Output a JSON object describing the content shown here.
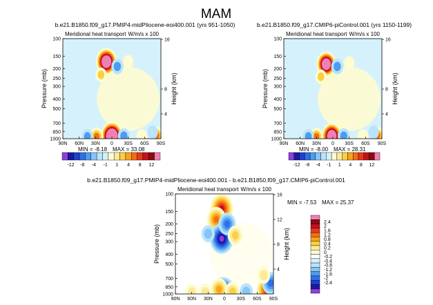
{
  "page": {
    "title": "MAM"
  },
  "colors": {
    "scale": [
      "#8e3ee0",
      "#1a1aa0",
      "#1f3fd0",
      "#2f6fe8",
      "#4e9bf0",
      "#87c5f6",
      "#b9e4fb",
      "#d5f1fb",
      "#fefcd0",
      "#fce99a",
      "#fbd040",
      "#f9a21c",
      "#f56d14",
      "#e8381a",
      "#c3121c",
      "#8e0a0e",
      "#f07fb4"
    ],
    "diff_scale": [
      "#8e3ee0",
      "#1a1aa0",
      "#1f3fd0",
      "#2f6fe8",
      "#4e9bf0",
      "#87c5f6",
      "#b9e4fb",
      "#d5f1fb",
      "#ffffff",
      "#fefcd0",
      "#fce99a",
      "#fbd040",
      "#f9a21c",
      "#f56d14",
      "#e8381a",
      "#c3121c",
      "#8e0a0e",
      "#f07fb4"
    ]
  },
  "chart_data": [
    {
      "type": "heatmap",
      "id": "panel1",
      "title": "b.e21.B1850.f09_g17.PMIP4-midPliocene-eoi400.001  (yrs 951-1050)",
      "subtitle": "Meridional heat transport",
      "units": "W/m/s x 100",
      "xlabel": "",
      "ylabel": "Pressure (mb)",
      "y2label": "Height (km)",
      "x_ticks": [
        "90N",
        "60N",
        "30N",
        "0",
        "30S",
        "60S",
        "90S"
      ],
      "x_values": [
        90,
        60,
        30,
        0,
        -30,
        -60,
        -90
      ],
      "y_ticks": [
        "100",
        "150",
        "200",
        "250",
        "300",
        "400",
        "500",
        "700",
        "850",
        "1000"
      ],
      "y_values": [
        100,
        150,
        200,
        250,
        300,
        400,
        500,
        700,
        850,
        1000
      ],
      "y2_ticks": [
        "16",
        "8",
        "4"
      ],
      "y2_values": [
        16,
        8,
        4
      ],
      "min_label": "MIN =",
      "min": "-8.18",
      "max_label": "MAX =",
      "max": "33.08",
      "colorbar_labels": [
        "-12",
        "-8",
        "-4",
        "-1",
        "1",
        "4",
        "8",
        "12"
      ],
      "features": [
        {
          "lat": 10,
          "p": 170,
          "value": 30
        },
        {
          "lat": -10,
          "p": 190,
          "value": -6
        },
        {
          "lat": 20,
          "p": 230,
          "value": 4
        },
        {
          "lat": -30,
          "p": 170,
          "value": 2
        },
        {
          "lat": 0,
          "p": 940,
          "value": 33
        },
        {
          "lat": 28,
          "p": 950,
          "value": 10
        },
        {
          "lat": -22,
          "p": 940,
          "value": -6
        },
        {
          "lat": 45,
          "p": 950,
          "value": -4
        },
        {
          "lat": -55,
          "p": 940,
          "value": 3
        },
        {
          "lat": -82,
          "p": 930,
          "value": 10
        },
        {
          "lat": -75,
          "p": 860,
          "value": -2
        }
      ]
    },
    {
      "type": "heatmap",
      "id": "panel2",
      "title": "b.e21.B1850.f09_g17.CMIP6-piControl.001  (yrs 1150-1199)",
      "subtitle": "Meridional heat transport",
      "units": "W/m/s x 100",
      "xlabel": "",
      "ylabel": "Pressure (mb)",
      "y2label": "Height (km)",
      "x_ticks": [
        "90N",
        "60N",
        "30N",
        "0",
        "30S",
        "60S",
        "90S"
      ],
      "x_values": [
        90,
        60,
        30,
        0,
        -30,
        -60,
        -90
      ],
      "y_ticks": [
        "100",
        "150",
        "200",
        "250",
        "300",
        "400",
        "500",
        "700",
        "850",
        "1000"
      ],
      "y_values": [
        100,
        150,
        200,
        250,
        300,
        400,
        500,
        700,
        850,
        1000
      ],
      "y2_ticks": [
        "16",
        "8",
        "4"
      ],
      "y2_values": [
        16,
        8,
        4
      ],
      "min_label": "MIN =",
      "min": "-8.00",
      "max_label": "MAX =",
      "max": "28.31",
      "colorbar_labels": [
        "-12",
        "-8",
        "-4",
        "-1",
        "1",
        "4",
        "8",
        "12"
      ],
      "features": [
        {
          "lat": 12,
          "p": 180,
          "value": 26
        },
        {
          "lat": -8,
          "p": 190,
          "value": -6
        },
        {
          "lat": 22,
          "p": 240,
          "value": 4
        },
        {
          "lat": -30,
          "p": 175,
          "value": 2
        },
        {
          "lat": 2,
          "p": 940,
          "value": 28
        },
        {
          "lat": 30,
          "p": 950,
          "value": 9
        },
        {
          "lat": -20,
          "p": 940,
          "value": -6
        },
        {
          "lat": 45,
          "p": 950,
          "value": -4
        },
        {
          "lat": -55,
          "p": 940,
          "value": 3
        },
        {
          "lat": -82,
          "p": 930,
          "value": 9
        },
        {
          "lat": -75,
          "p": 860,
          "value": -2
        }
      ]
    },
    {
      "type": "heatmap",
      "id": "panel3",
      "title": "b.e21.B1850.f09_g17.PMIP4-midPliocene-eoi400.001  -  b.e21.B1850.f09_g17.CMIP6-piControl.001",
      "subtitle": "Meridional heat transport",
      "units": "W/m/s x 100",
      "xlabel": "",
      "ylabel": "Pressure (mb)",
      "y2label": "Height (km)",
      "x_ticks": [
        "90N",
        "60N",
        "30N",
        "0",
        "30S",
        "60S",
        "90S"
      ],
      "x_values": [
        90,
        60,
        30,
        0,
        -30,
        -60,
        -90
      ],
      "y_ticks": [
        "100",
        "150",
        "200",
        "250",
        "300",
        "400",
        "500",
        "700",
        "850",
        "1000"
      ],
      "y_values": [
        100,
        150,
        200,
        250,
        300,
        400,
        500,
        700,
        850,
        1000
      ],
      "y2_ticks": [
        "16",
        "12",
        "8",
        "4"
      ],
      "y2_values": [
        16,
        12,
        8,
        4
      ],
      "min_label": "MIN =",
      "min": "-7.53",
      "max_label": "MAX =",
      "max": "25.37",
      "colorbar_labels": [
        "2.4",
        "2",
        "1.6",
        "1.2",
        "0.8",
        "0.4",
        "0.2",
        "0",
        "-0.2",
        "-0.4",
        "-0.8",
        "-1.2",
        "-1.6",
        "-2",
        "-2.4"
      ],
      "features": [
        {
          "lat": 5,
          "p": 140,
          "value": 2.4
        },
        {
          "lat": 15,
          "p": 180,
          "value": 1.6
        },
        {
          "lat": 5,
          "p": 280,
          "value": -2.4
        },
        {
          "lat": -5,
          "p": 200,
          "value": -1.2
        },
        {
          "lat": -20,
          "p": 260,
          "value": 0.8
        },
        {
          "lat": 30,
          "p": 250,
          "value": -0.4
        },
        {
          "lat": 2,
          "p": 960,
          "value": -2.4
        },
        {
          "lat": 10,
          "p": 900,
          "value": 1.2
        },
        {
          "lat": -15,
          "p": 950,
          "value": 0.8
        },
        {
          "lat": 35,
          "p": 960,
          "value": 0.4
        },
        {
          "lat": -40,
          "p": 950,
          "value": -0.4
        },
        {
          "lat": -80,
          "p": 920,
          "value": 2.4
        },
        {
          "lat": -85,
          "p": 780,
          "value": -1.2
        },
        {
          "lat": -72,
          "p": 650,
          "value": 0.4
        },
        {
          "lat": 60,
          "p": 960,
          "value": 0.4
        }
      ]
    }
  ]
}
